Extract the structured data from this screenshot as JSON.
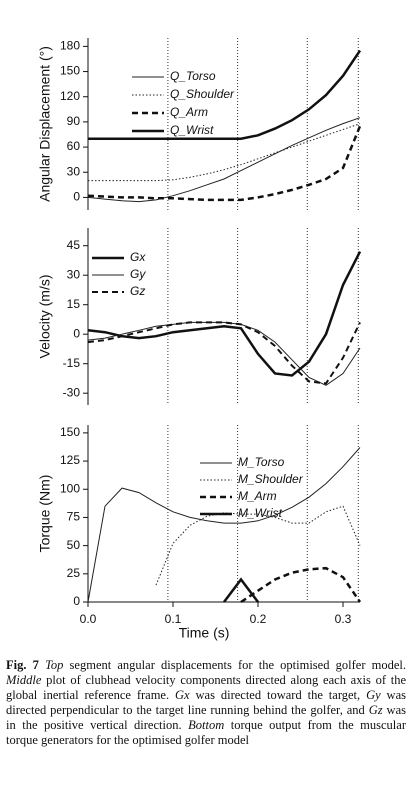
{
  "chart_data": [
    {
      "type": "line",
      "ylabel": "Angular Displacement (°)",
      "x": [
        0,
        0.02,
        0.04,
        0.06,
        0.08,
        0.1,
        0.12,
        0.14,
        0.16,
        0.18,
        0.2,
        0.22,
        0.24,
        0.26,
        0.28,
        0.3,
        0.32
      ],
      "xlim": [
        0,
        0.32
      ],
      "ylim": [
        -15,
        190
      ],
      "yticks": [
        0,
        30,
        60,
        90,
        120,
        150,
        180
      ],
      "vlines": [
        0.094,
        0.176,
        0.258,
        0.318
      ],
      "series": [
        {
          "name": "Q_Torso",
          "color": "#222222",
          "dash": "solid",
          "width": 1,
          "values": [
            0,
            -2,
            -4,
            -5,
            -3,
            2,
            8,
            15,
            22,
            32,
            42,
            52,
            62,
            71,
            80,
            88,
            95
          ]
        },
        {
          "name": "Q_Shoulder",
          "color": "#222222",
          "dash": "dotted",
          "width": 1,
          "values": [
            20,
            20,
            20,
            20,
            20,
            21,
            24,
            28,
            33,
            39,
            46,
            53,
            60,
            67,
            74,
            81,
            88
          ]
        },
        {
          "name": "Q_Arm",
          "color": "#111111",
          "dash": "dashed",
          "width": 2.5,
          "values": [
            2,
            1,
            0,
            0,
            -1,
            -1,
            -2,
            -3,
            -3,
            -3,
            0,
            4,
            9,
            15,
            22,
            35,
            85
          ]
        },
        {
          "name": "Q_Wrist",
          "color": "#111111",
          "dash": "solid",
          "width": 2.5,
          "values": [
            70,
            70,
            70,
            70,
            70,
            70,
            70,
            70,
            70,
            70,
            74,
            82,
            92,
            105,
            122,
            145,
            175
          ]
        }
      ]
    },
    {
      "type": "line",
      "ylabel": "Velocity (m/s)",
      "x": [
        0,
        0.02,
        0.04,
        0.06,
        0.08,
        0.1,
        0.12,
        0.14,
        0.16,
        0.18,
        0.2,
        0.22,
        0.24,
        0.26,
        0.28,
        0.3,
        0.32
      ],
      "xlim": [
        0,
        0.32
      ],
      "ylim": [
        -36,
        54
      ],
      "yticks": [
        -30,
        -15,
        0,
        15,
        30,
        45
      ],
      "vlines": [
        0.094,
        0.176,
        0.258,
        0.318
      ],
      "series": [
        {
          "name": "Gx",
          "color": "#111111",
          "dash": "solid",
          "width": 2.5,
          "values": [
            2,
            1,
            -1,
            -2,
            -1,
            1,
            2,
            3,
            4,
            3,
            -10,
            -20,
            -21,
            -14,
            0,
            25,
            42
          ]
        },
        {
          "name": "Gy",
          "color": "#222222",
          "dash": "solid",
          "width": 1,
          "values": [
            -3,
            -2,
            0,
            2,
            4,
            5,
            6,
            6,
            6,
            5,
            2,
            -4,
            -13,
            -22,
            -26,
            -20,
            -7
          ]
        },
        {
          "name": "Gz",
          "color": "#111111",
          "dash": "dashed",
          "width": 2,
          "values": [
            -4,
            -3,
            -1,
            1,
            3,
            5,
            6,
            6,
            6,
            5,
            1,
            -6,
            -16,
            -24,
            -25,
            -12,
            6
          ]
        }
      ]
    },
    {
      "type": "line",
      "ylabel": "Torque (Nm)",
      "xlabel": "Time (s)",
      "x": [
        0,
        0.02,
        0.04,
        0.06,
        0.08,
        0.1,
        0.12,
        0.14,
        0.16,
        0.18,
        0.2,
        0.22,
        0.24,
        0.26,
        0.28,
        0.3,
        0.32
      ],
      "xlim": [
        0,
        0.32
      ],
      "ylim": [
        0,
        157
      ],
      "yticks": [
        0,
        25,
        50,
        75,
        100,
        125,
        150
      ],
      "xticks": [
        {
          "value": 0,
          "label": "0.0"
        },
        0.1,
        0.2,
        0.3
      ],
      "vlines": [
        0.094,
        0.176,
        0.258,
        0.318
      ],
      "series": [
        {
          "name": "M_Torso",
          "color": "#222222",
          "dash": "solid",
          "width": 1,
          "values": [
            0,
            85,
            101,
            97,
            88,
            80,
            75,
            72,
            70,
            70,
            72,
            77,
            84,
            93,
            105,
            120,
            137
          ]
        },
        {
          "name": "M_Shoulder",
          "color": "#222222",
          "dash": "dotted",
          "width": 1,
          "values": [
            null,
            null,
            null,
            null,
            15,
            52,
            68,
            76,
            79,
            78,
            78,
            75,
            70,
            70,
            80,
            85,
            50
          ]
        },
        {
          "name": "M_Arm",
          "color": "#111111",
          "dash": "dashed",
          "width": 2.5,
          "values": [
            null,
            null,
            null,
            null,
            null,
            null,
            null,
            null,
            null,
            0,
            10,
            20,
            26,
            29,
            30,
            22,
            0
          ]
        },
        {
          "name": "M_Wrist",
          "color": "#111111",
          "dash": "solid",
          "width": 2.5,
          "values": [
            null,
            null,
            null,
            null,
            null,
            null,
            null,
            null,
            0,
            20,
            0,
            null,
            null,
            null,
            null,
            null,
            null
          ]
        }
      ]
    }
  ],
  "caption": {
    "label": "Fig. 7",
    "parts": [
      {
        "text": "Top",
        "italic": true
      },
      {
        "text": " segment angular displacements for the optimised golfer model. ",
        "italic": false
      },
      {
        "text": "Middle",
        "italic": true
      },
      {
        "text": " plot of clubhead velocity components directed along each axis of the global inertial reference frame. ",
        "italic": false
      },
      {
        "text": "Gx",
        "italic": true
      },
      {
        "text": " was directed toward the target, ",
        "italic": false
      },
      {
        "text": "Gy",
        "italic": true
      },
      {
        "text": " was directed perpendicular to the target line running behind the golfer, and ",
        "italic": false
      },
      {
        "text": "Gz",
        "italic": true
      },
      {
        "text": " was in the positive vertical direction. ",
        "italic": false
      },
      {
        "text": "Bottom",
        "italic": true
      },
      {
        "text": " torque output from the muscular torque generators for the optimised golfer model",
        "italic": false
      }
    ]
  }
}
